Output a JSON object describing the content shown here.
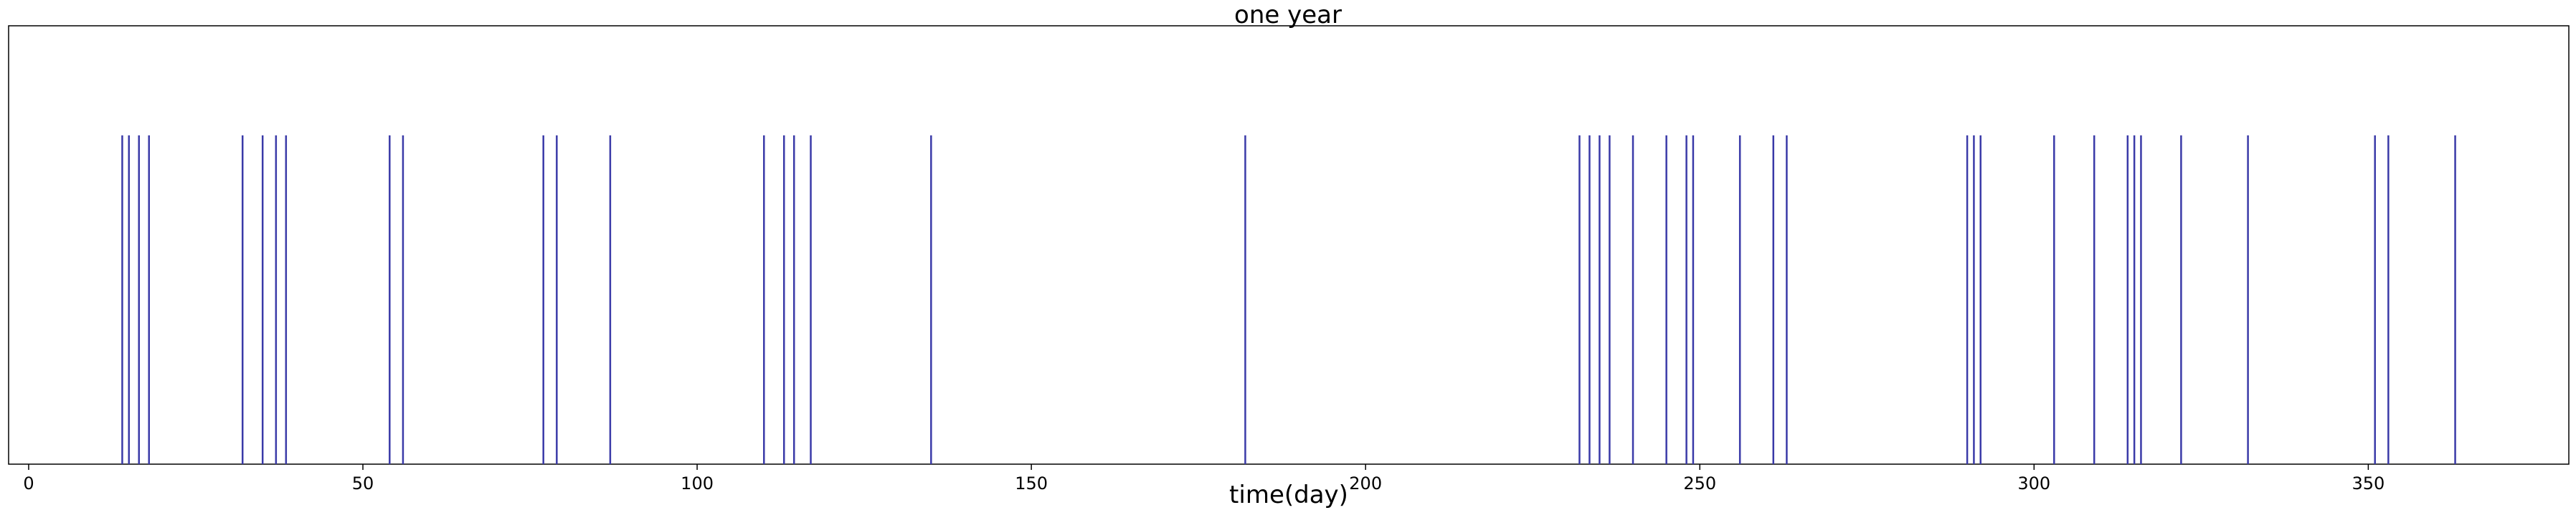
{
  "chart_data": {
    "type": "eventplot",
    "title": "one year",
    "xlabel": "time(day)",
    "ylabel": "",
    "xlim": [
      -3,
      380
    ],
    "ylim": [
      0,
      1
    ],
    "event_line": {
      "y_from": 0,
      "y_to": 0.75
    },
    "x_ticks": [
      0,
      50,
      100,
      150,
      200,
      250,
      300,
      350
    ],
    "x_tick_labels": [
      "0",
      "50",
      "100",
      "150",
      "200",
      "250",
      "300",
      "350"
    ],
    "events": [
      14,
      15,
      16.5,
      18,
      32,
      35,
      37,
      38.5,
      54,
      56,
      77,
      79,
      87,
      110,
      113,
      114.5,
      117,
      135,
      182,
      232,
      233.5,
      235,
      236.5,
      240,
      245,
      248,
      249,
      256,
      261,
      263,
      290,
      291,
      292,
      303,
      309,
      314,
      315,
      316,
      322,
      332,
      351,
      353,
      363
    ],
    "line_color": "#3a3aa8",
    "grid": false,
    "legend": "none"
  }
}
